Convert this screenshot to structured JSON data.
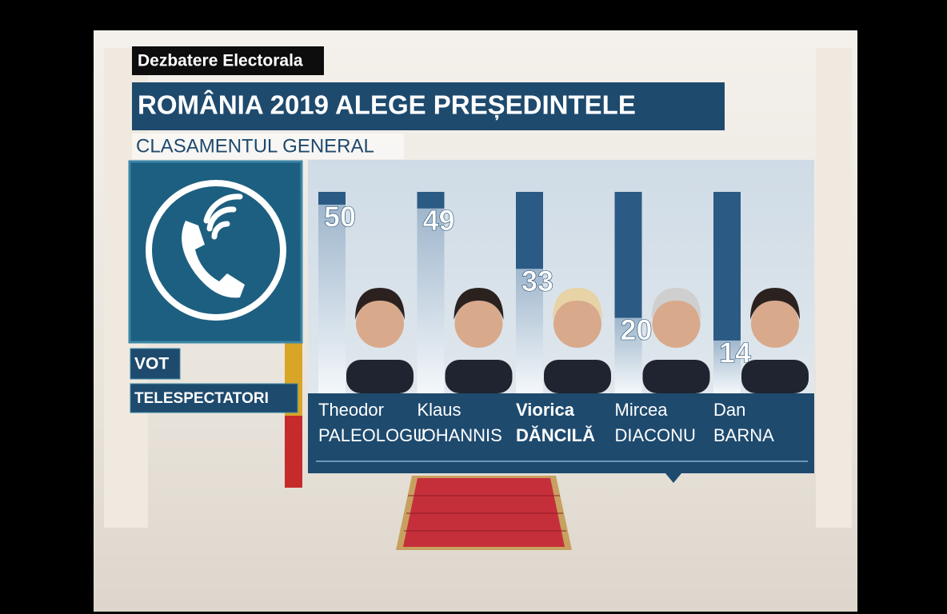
{
  "show": "Dezbatere Electorala",
  "headline": "ROMÂNIA 2019 ALEGE PREȘEDINTELE",
  "subheadline": "CLASAMENTUL GENERAL",
  "vote_label": [
    "VOT",
    "TELESPECTATORI"
  ],
  "chart_data": {
    "type": "bar",
    "categories": [
      [
        "Theodor",
        "PALEOLOGU"
      ],
      [
        "Klaus",
        "IOHANNIS"
      ],
      [
        "Viorica",
        "DĂNCILĂ"
      ],
      [
        "Mircea",
        "DIACONU"
      ],
      [
        "Dan",
        "BARNA"
      ]
    ],
    "values": [
      50,
      49,
      33,
      20,
      14
    ],
    "color": "#2b5b84"
  }
}
